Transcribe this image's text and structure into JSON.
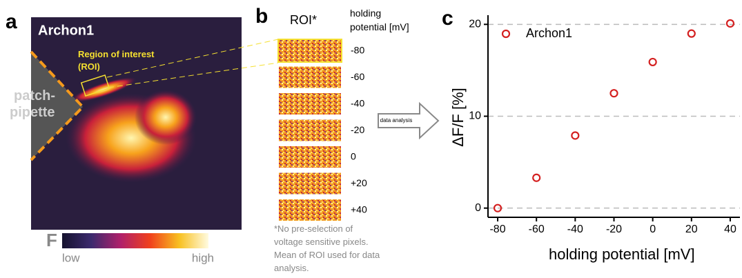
{
  "panel_a": {
    "letter": "a",
    "title": "Archon1",
    "roi_label": [
      "Region of interest",
      "(ROI)"
    ],
    "pipette_label": [
      "patch-",
      "pipette"
    ],
    "colorbar": {
      "symbol": "F",
      "low": "low",
      "high": "high"
    }
  },
  "panel_b": {
    "letter": "b",
    "roi_header": "ROI*",
    "potential_header": [
      "holding",
      "potential [mV]"
    ],
    "potentials": [
      "-80",
      "-60",
      "-40",
      "-20",
      "0",
      "+20",
      "+40"
    ],
    "arrow_label": "data analysis",
    "footnote": [
      "*No pre-selection of",
      "voltage sensitive pixels.",
      "Mean of ROI used for data",
      "analysis."
    ]
  },
  "chart_data": {
    "type": "scatter",
    "letter": "c",
    "x_label": "holding potential [mV]",
    "y_label": "ΔF/F [%]",
    "series": [
      {
        "name": "Archon1",
        "color": "#d42020",
        "x": [
          -80,
          -60,
          -40,
          -20,
          0,
          20,
          40
        ],
        "values": [
          0,
          3.3,
          7.9,
          12.5,
          15.9,
          19,
          20.1
        ]
      }
    ],
    "xlim": [
      -85,
      45
    ],
    "ylim": [
      -1,
      21
    ],
    "xticks": [
      -80,
      -60,
      -40,
      -20,
      0,
      20,
      40
    ],
    "yticks": [
      0,
      10,
      20
    ],
    "grid": true
  }
}
